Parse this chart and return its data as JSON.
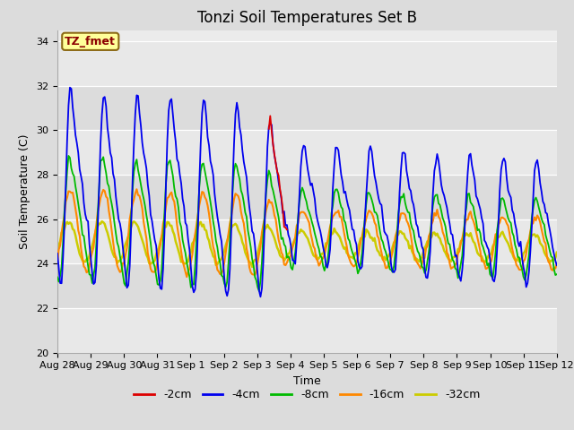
{
  "title": "Tonzi Soil Temperatures Set B",
  "xlabel": "Time",
  "ylabel": "Soil Temperature (C)",
  "ylim": [
    20,
    34.5
  ],
  "annotation_text": "TZ_fmet",
  "annotation_color": "#8B0000",
  "annotation_bg": "#FFFF99",
  "annotation_border": "#8B6914",
  "legend_labels": [
    "-2cm",
    "-4cm",
    "-8cm",
    "-16cm",
    "-32cm"
  ],
  "line_colors": [
    "#DD0000",
    "#0000EE",
    "#00BB00",
    "#FF8800",
    "#CCCC00"
  ],
  "line_widths": [
    1.3,
    1.3,
    1.3,
    1.5,
    1.8
  ],
  "background_color": "#DCDCDC",
  "plot_bg_light": "#F0F0F0",
  "plot_bg_dark": "#E0E0E0",
  "tick_labels": [
    "Aug 28",
    "Aug 29",
    "Aug 30",
    "Aug 31",
    "Sep 1",
    "Sep 2",
    "Sep 3",
    "Sep 4",
    "Sep 5",
    "Sep 6",
    "Sep 7",
    "Sep 8",
    "Sep 9",
    "Sep 10",
    "Sep 11",
    "Sep 12"
  ],
  "title_fontsize": 12,
  "axis_label_fontsize": 9,
  "tick_fontsize": 8,
  "legend_fontsize": 9
}
